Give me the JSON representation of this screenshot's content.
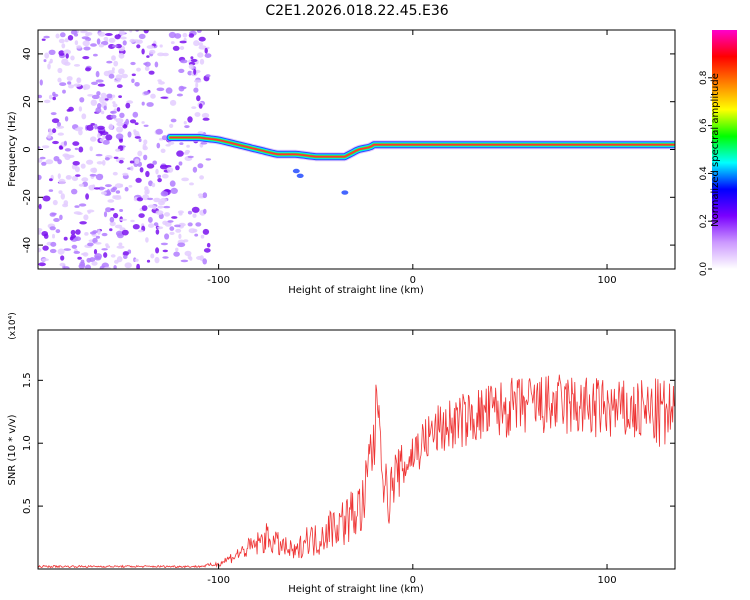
{
  "title": "C2E1.2026.018.22.45.E36",
  "chart_data": [
    {
      "type": "heatmap",
      "title": "C2E1.2026.018.22.45.E36",
      "xlabel": "Height of straight line (km)",
      "ylabel": "Frequency (Hz)",
      "xlim": [
        -193,
        135
      ],
      "ylim": [
        -50,
        50
      ],
      "xticks": [
        -100,
        0,
        100
      ],
      "xtick_labels": [
        "-100",
        "0",
        "100"
      ],
      "yticks": [
        -40,
        -20,
        0,
        20,
        40
      ],
      "ytick_labels": [
        "-40",
        "-20",
        "0",
        "20",
        "40"
      ],
      "colorbar": {
        "label": "Normalized spectral amplitude",
        "range": [
          0,
          1
        ],
        "ticks": [
          0.0,
          0.2,
          0.4,
          0.6,
          0.8
        ],
        "tick_labels": [
          "0.0",
          "0.2",
          "0.4",
          "0.6",
          "0.8"
        ],
        "colors": [
          "#ffffff",
          "#cc99ff",
          "#7a00ff",
          "#0000ff",
          "#00ffff",
          "#00ff00",
          "#ffff00",
          "#ff8000",
          "#ff0000",
          "#ff00cc"
        ]
      },
      "noise_region_x": [
        -193,
        -105
      ],
      "ridge": {
        "x": [
          -125,
          -110,
          -100,
          -90,
          -80,
          -70,
          -60,
          -50,
          -42,
          -35,
          -28,
          -22,
          -20,
          -10,
          0,
          10,
          20,
          30,
          40,
          50,
          60,
          70,
          80,
          90,
          100,
          110,
          120,
          135
        ],
        "y": [
          5,
          5,
          4,
          2,
          0,
          -2,
          -2,
          -3,
          -3,
          -3,
          0,
          1,
          2,
          2,
          2,
          2,
          2,
          2,
          2,
          2,
          2,
          2,
          2,
          2,
          2,
          2,
          2,
          2
        ]
      }
    },
    {
      "type": "line",
      "xlabel": "Height of straight line (km)",
      "ylabel": "SNR (10 * v/v)",
      "multiplier_label": "(x10⁴)",
      "xlim": [
        -193,
        135
      ],
      "ylim": [
        0,
        1.9
      ],
      "xticks": [
        -100,
        0,
        100
      ],
      "xtick_labels": [
        "-100",
        "0",
        "100"
      ],
      "yticks": [
        0.5,
        1.0,
        1.5
      ],
      "ytick_labels": [
        "0.5",
        "1.0",
        "1.5"
      ],
      "series": [
        {
          "name": "SNR",
          "color": "#ee3333",
          "x": [
            -193,
            -150,
            -110,
            -100,
            -90,
            -80,
            -75,
            -70,
            -60,
            -55,
            -50,
            -45,
            -40,
            -35,
            -30,
            -25,
            -22,
            -20,
            -18,
            -15,
            -12,
            -10,
            -5,
            0,
            5,
            10,
            15,
            20,
            30,
            40,
            50,
            60,
            70,
            80,
            90,
            100,
            110,
            120,
            130,
            135
          ],
          "y": [
            0.02,
            0.02,
            0.02,
            0.04,
            0.12,
            0.2,
            0.25,
            0.2,
            0.12,
            0.25,
            0.22,
            0.3,
            0.35,
            0.38,
            0.45,
            0.5,
            0.9,
            1.0,
            1.4,
            0.7,
            0.55,
            0.72,
            0.8,
            0.92,
            1.0,
            1.08,
            1.12,
            1.15,
            1.2,
            1.25,
            1.28,
            1.3,
            1.3,
            1.3,
            1.28,
            1.27,
            1.25,
            1.25,
            1.22,
            1.2
          ],
          "noise": [
            0.008,
            0.008,
            0.008,
            0.02,
            0.06,
            0.1,
            0.12,
            0.1,
            0.08,
            0.12,
            0.14,
            0.16,
            0.18,
            0.2,
            0.22,
            0.25,
            0.3,
            0.35,
            0.2,
            0.2,
            0.22,
            0.22,
            0.2,
            0.2,
            0.2,
            0.2,
            0.22,
            0.22,
            0.22,
            0.24,
            0.24,
            0.25,
            0.25,
            0.26,
            0.26,
            0.25,
            0.25,
            0.27,
            0.3,
            0.3
          ]
        }
      ]
    }
  ]
}
